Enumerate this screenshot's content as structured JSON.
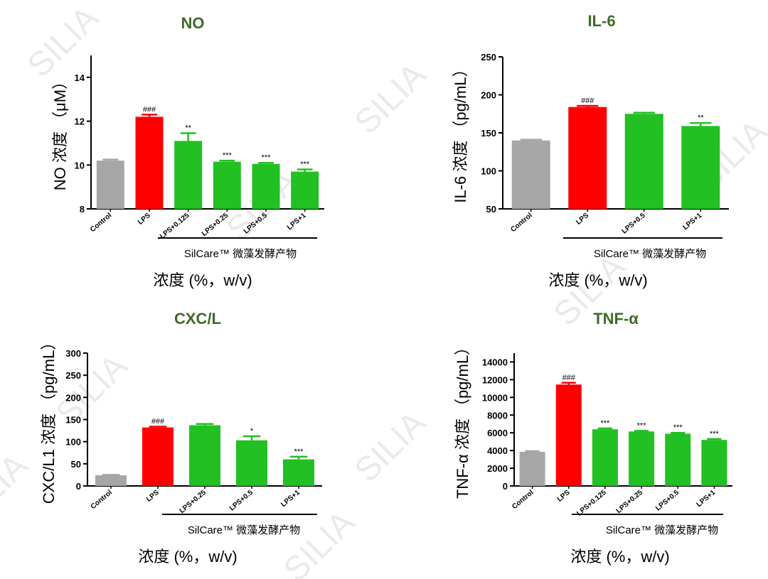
{
  "watermark": "SILIA",
  "chart_data": [
    {
      "type": "bar",
      "title": "NO",
      "ylabel": "NO 浓度 （μM）",
      "xlabel": "浓度 (%，w/v)",
      "group_label": "SilCare™ 微藻发酵产物",
      "categories": [
        "Control",
        "LPS",
        "LPS+0.125",
        "LPS+0.25",
        "LPS+0.5",
        "LPS+1"
      ],
      "values": [
        10.2,
        12.2,
        11.1,
        10.15,
        10.05,
        9.7
      ],
      "errors": [
        0.05,
        0.1,
        0.35,
        0.05,
        0.05,
        0.1
      ],
      "significance": [
        "",
        "###",
        "**",
        "***",
        "***",
        "***"
      ],
      "colors": [
        "#a6a6a6",
        "#ff0000",
        "#22c022",
        "#22c022",
        "#22c022",
        "#22c022"
      ],
      "ylim": [
        8,
        15
      ],
      "yticks": [
        8,
        10,
        12,
        14
      ]
    },
    {
      "type": "bar",
      "title": "IL-6",
      "ylabel": "IL-6 浓度 （pg/mL）",
      "xlabel": "浓度 (%，w/v)",
      "group_label": "SilCare™ 微藻发酵产物",
      "categories": [
        "Control",
        "LPS",
        "LPS+0.5",
        "LPS+1"
      ],
      "values": [
        140,
        184,
        175,
        159
      ],
      "errors": [
        1,
        1.5,
        1.5,
        4
      ],
      "significance": [
        "",
        "###",
        "",
        "**"
      ],
      "colors": [
        "#a6a6a6",
        "#ff0000",
        "#22c022",
        "#22c022"
      ],
      "ylim": [
        50,
        250
      ],
      "yticks": [
        50,
        100,
        150,
        200,
        250
      ]
    },
    {
      "type": "bar",
      "title": "CXC/L",
      "ylabel": "CXC/L1 浓度 （pg/mL）",
      "xlabel": "浓度 (%，w/v)",
      "group_label": "SilCare™ 微藻发酵产物",
      "categories": [
        "Control",
        "LPS",
        "LPS+0.25",
        "LPS+0.5",
        "LPS+1"
      ],
      "values": [
        24,
        132,
        137,
        103,
        60
      ],
      "errors": [
        1,
        2,
        3,
        9,
        6
      ],
      "significance": [
        "",
        "###",
        "",
        "*",
        "***"
      ],
      "colors": [
        "#a6a6a6",
        "#ff0000",
        "#22c022",
        "#22c022",
        "#22c022"
      ],
      "ylim": [
        0,
        300
      ],
      "yticks": [
        0,
        50,
        100,
        150,
        200,
        250,
        300
      ]
    },
    {
      "type": "bar",
      "title": "TNF-α",
      "ylabel": "TNF-α 浓度 （pg/mL）",
      "xlabel": "浓度 (%，w/v)",
      "group_label": "SilCare™ 微藻发酵产物",
      "categories": [
        "Control",
        "LPS",
        "LPS+0.125",
        "LPS+0.25",
        "LPS+0.5",
        "LPS+1"
      ],
      "values": [
        3850,
        11450,
        6400,
        6150,
        5900,
        5200
      ],
      "errors": [
        80,
        200,
        100,
        80,
        100,
        100
      ],
      "significance": [
        "",
        "###",
        "***",
        "***",
        "***",
        "***"
      ],
      "colors": [
        "#a6a6a6",
        "#ff0000",
        "#22c022",
        "#22c022",
        "#22c022",
        "#22c022"
      ],
      "ylim": [
        0,
        15000
      ],
      "yticks": [
        0,
        2000,
        4000,
        6000,
        8000,
        10000,
        12000,
        14000
      ]
    }
  ]
}
